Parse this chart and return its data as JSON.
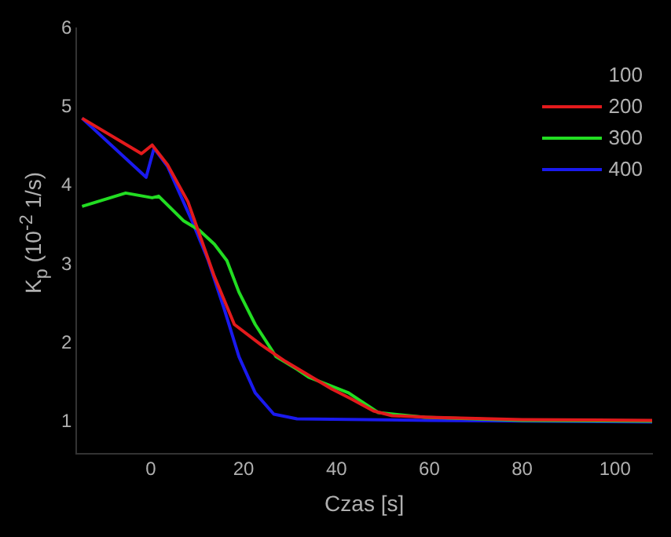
{
  "chart_data": {
    "type": "line",
    "xlabel": "Czas [s]",
    "ylabel": "K$_{p}$ (10$^{-2}$ 1/s)",
    "legend_title": "100",
    "xlim": [
      -16,
      108
    ],
    "xticks": [
      0,
      20,
      40,
      60,
      80,
      100
    ],
    "ylim": [
      0.6,
      6
    ],
    "yticks": [
      1,
      2,
      3,
      4,
      5,
      6
    ],
    "grid": false,
    "legend": "top right",
    "marker": "none",
    "line_style": "solid",
    "series": [
      {
        "name": "200",
        "color": "#e31a1c",
        "x": [
          -14.8,
          -2,
          0.3,
          3.6,
          8,
          10.4,
          13.7,
          18,
          23.8,
          29,
          39,
          43,
          48,
          52,
          60,
          80,
          108
        ],
        "values": [
          4.86,
          4.41,
          4.52,
          4.27,
          3.8,
          3.4,
          2.85,
          2.24,
          1.98,
          1.77,
          1.42,
          1.3,
          1.14,
          1.08,
          1.06,
          1.03,
          1.02
        ]
      },
      {
        "name": "300",
        "color": "#22dd22",
        "x": [
          -14.8,
          -5.4,
          0.3,
          1.7,
          7,
          10.4,
          13.7,
          16.4,
          19,
          22.5,
          27,
          31.5,
          34,
          42.6,
          49,
          59,
          80,
          108
        ],
        "values": [
          3.74,
          3.91,
          3.85,
          3.87,
          3.56,
          3.44,
          3.26,
          3.05,
          2.65,
          2.24,
          1.83,
          1.67,
          1.57,
          1.37,
          1.12,
          1.06,
          1.02,
          1.01
        ]
      },
      {
        "name": "400",
        "color": "#1a1aee",
        "x": [
          -14.8,
          -1,
          0.7,
          3.6,
          9,
          12.4,
          15.8,
          19,
          22.5,
          26.5,
          31.5,
          60,
          108
        ],
        "values": [
          4.86,
          4.11,
          4.48,
          4.25,
          3.54,
          3.05,
          2.44,
          1.83,
          1.37,
          1.1,
          1.04,
          1.02,
          1.0
        ]
      }
    ]
  }
}
